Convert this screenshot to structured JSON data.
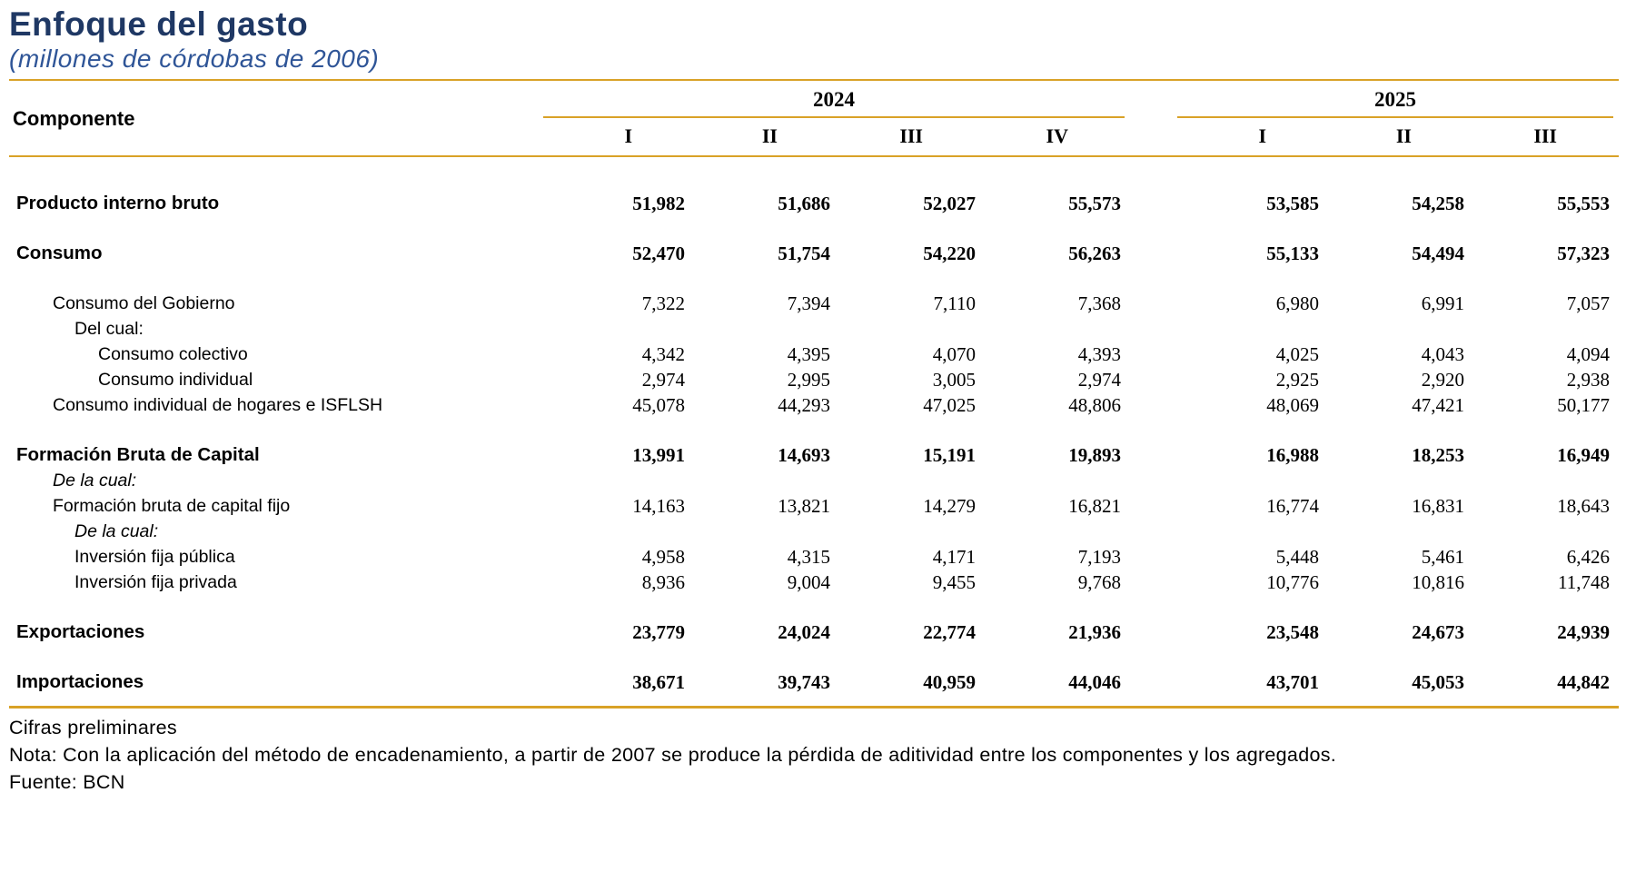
{
  "title": "Enfoque del gasto",
  "subtitle": "(millones de córdobas de 2006)",
  "colors": {
    "title_navy": "#1F3864",
    "subtitle_blue": "#2F5597",
    "rule_gold": "#D9A227",
    "text": "#000000"
  },
  "table": {
    "component_header": "Componente",
    "year_groups": [
      {
        "year": "2024",
        "quarters": [
          "I",
          "II",
          "III",
          "IV"
        ]
      },
      {
        "year": "2025",
        "quarters": [
          "I",
          "II",
          "III"
        ]
      }
    ],
    "rows": [
      {
        "label": "Producto interno bruto",
        "style": "bold",
        "indent": 0,
        "section_gap": true,
        "values": [
          "51,982",
          "51,686",
          "52,027",
          "55,573",
          "53,585",
          "54,258",
          "55,553"
        ]
      },
      {
        "label": "Consumo",
        "style": "bold",
        "indent": 0,
        "section_gap": true,
        "values": [
          "52,470",
          "51,754",
          "54,220",
          "56,263",
          "55,133",
          "54,494",
          "57,323"
        ]
      },
      {
        "label": "Consumo del Gobierno",
        "style": "normal",
        "indent": 1,
        "section_gap": true,
        "values": [
          "7,322",
          "7,394",
          "7,110",
          "7,368",
          "6,980",
          "6,991",
          "7,057"
        ]
      },
      {
        "label": "Del cual:",
        "style": "normal",
        "indent": 2,
        "section_gap": false,
        "values": []
      },
      {
        "label": "Consumo colectivo",
        "style": "normal",
        "indent": 3,
        "section_gap": false,
        "values": [
          "4,342",
          "4,395",
          "4,070",
          "4,393",
          "4,025",
          "4,043",
          "4,094"
        ]
      },
      {
        "label": "Consumo individual",
        "style": "normal",
        "indent": 3,
        "section_gap": false,
        "values": [
          "2,974",
          "2,995",
          "3,005",
          "2,974",
          "2,925",
          "2,920",
          "2,938"
        ]
      },
      {
        "label": "Consumo individual de hogares e ISFLSH",
        "style": "normal",
        "indent": 1,
        "section_gap": false,
        "values": [
          "45,078",
          "44,293",
          "47,025",
          "48,806",
          "48,069",
          "47,421",
          "50,177"
        ]
      },
      {
        "label": "Formación Bruta de Capital",
        "style": "bold",
        "indent": 0,
        "section_gap": true,
        "values": [
          "13,991",
          "14,693",
          "15,191",
          "19,893",
          "16,988",
          "18,253",
          "16,949"
        ]
      },
      {
        "label": "De la cual:",
        "style": "italic",
        "indent": 1,
        "section_gap": false,
        "values": []
      },
      {
        "label": "Formación bruta de capital fijo",
        "style": "normal",
        "indent": 1,
        "section_gap": false,
        "values": [
          "14,163",
          "13,821",
          "14,279",
          "16,821",
          "16,774",
          "16,831",
          "18,643"
        ]
      },
      {
        "label": "De la cual:",
        "style": "italic",
        "indent": 2,
        "section_gap": false,
        "values": []
      },
      {
        "label": "Inversión fija pública",
        "style": "normal",
        "indent": 2,
        "section_gap": false,
        "values": [
          "4,958",
          "4,315",
          "4,171",
          "7,193",
          "5,448",
          "5,461",
          "6,426"
        ]
      },
      {
        "label": "Inversión fija privada",
        "style": "normal",
        "indent": 2,
        "section_gap": false,
        "values": [
          "8,936",
          "9,004",
          "9,455",
          "9,768",
          "10,776",
          "10,816",
          "11,748"
        ]
      },
      {
        "label": "Exportaciones",
        "style": "bold",
        "indent": 0,
        "section_gap": true,
        "values": [
          "23,779",
          "24,024",
          "22,774",
          "21,936",
          "23,548",
          "24,673",
          "24,939"
        ]
      },
      {
        "label": "Importaciones",
        "style": "bold",
        "indent": 0,
        "section_gap": true,
        "values": [
          "38,671",
          "39,743",
          "40,959",
          "44,046",
          "43,701",
          "45,053",
          "44,842"
        ]
      }
    ]
  },
  "footer": {
    "line1": "Cifras preliminares",
    "line2": "Nota: Con la aplicación del método de encadenamiento, a partir de 2007 se produce la pérdida de aditividad entre los componentes y los agregados.",
    "line3": "Fuente: BCN"
  },
  "chart_data": {
    "type": "table",
    "title": "Enfoque del gasto",
    "subtitle": "(millones de córdobas de 2006)",
    "columns": [
      "Componente",
      "2024-I",
      "2024-II",
      "2024-III",
      "2024-IV",
      "2025-I",
      "2025-II",
      "2025-III"
    ],
    "rows": [
      [
        "Producto interno bruto",
        51982,
        51686,
        52027,
        55573,
        53585,
        54258,
        55553
      ],
      [
        "Consumo",
        52470,
        51754,
        54220,
        56263,
        55133,
        54494,
        57323
      ],
      [
        "Consumo del Gobierno",
        7322,
        7394,
        7110,
        7368,
        6980,
        6991,
        7057
      ],
      [
        "Consumo colectivo",
        4342,
        4395,
        4070,
        4393,
        4025,
        4043,
        4094
      ],
      [
        "Consumo individual",
        2974,
        2995,
        3005,
        2974,
        2925,
        2920,
        2938
      ],
      [
        "Consumo individual de hogares e ISFLSH",
        45078,
        44293,
        47025,
        48806,
        48069,
        47421,
        50177
      ],
      [
        "Formación Bruta de Capital",
        13991,
        14693,
        15191,
        19893,
        16988,
        18253,
        16949
      ],
      [
        "Formación bruta de capital fijo",
        14163,
        13821,
        14279,
        16821,
        16774,
        16831,
        18643
      ],
      [
        "Inversión fija pública",
        4958,
        4315,
        4171,
        7193,
        5448,
        5461,
        6426
      ],
      [
        "Inversión fija privada",
        8936,
        9004,
        9455,
        9768,
        10776,
        10816,
        11748
      ],
      [
        "Exportaciones",
        23779,
        24024,
        22774,
        21936,
        23548,
        24673,
        24939
      ],
      [
        "Importaciones",
        38671,
        39743,
        40959,
        44046,
        43701,
        45053,
        44842
      ]
    ],
    "units": "millones de córdobas de 2006",
    "source": "BCN"
  }
}
